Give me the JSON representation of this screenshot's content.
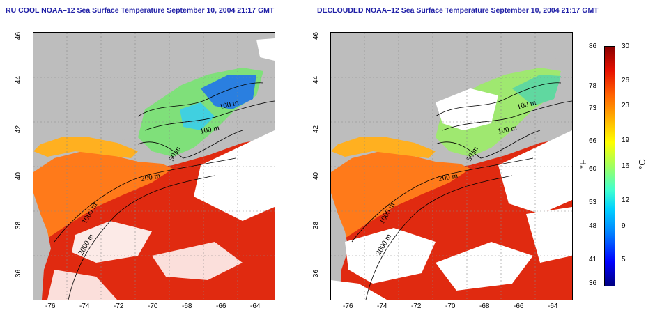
{
  "panels": [
    {
      "title": "RU COOL NOAA–12 Sea Surface Temperature September 10, 2004 21:17 GMT"
    },
    {
      "title": "DECLOUDED NOAA–12 Sea Surface Temperature September 10, 2004 21:17 GMT"
    }
  ],
  "map": {
    "lon_ticks": [
      "-76",
      "-74",
      "-72",
      "-70",
      "-68",
      "-66",
      "-64"
    ],
    "lat_ticks": [
      "36",
      "38",
      "40",
      "42",
      "44",
      "46"
    ],
    "contour_labels": [
      "100 m",
      "100 m",
      "50 m",
      "200 m",
      "1000 m",
      "2000 m"
    ],
    "colors": {
      "land": "#bdbdbd",
      "cloud": "#ffffff",
      "ocean_warm": "#e32b12",
      "ocean_shelf": "#ff7a1a",
      "ocean_cool": "#7fe07a",
      "ocean_cold": "#2a7fe0",
      "contour": "#000000"
    }
  },
  "colorbar": {
    "fahrenheit_ticks": [
      "86",
      "78",
      "73",
      "66",
      "60",
      "53",
      "48",
      "41",
      "36"
    ],
    "celsius_ticks": [
      "30",
      "26",
      "23",
      "19",
      "16",
      "12",
      "9",
      "5"
    ],
    "fahrenheit_unit": "°F",
    "celsius_unit": "°C"
  }
}
